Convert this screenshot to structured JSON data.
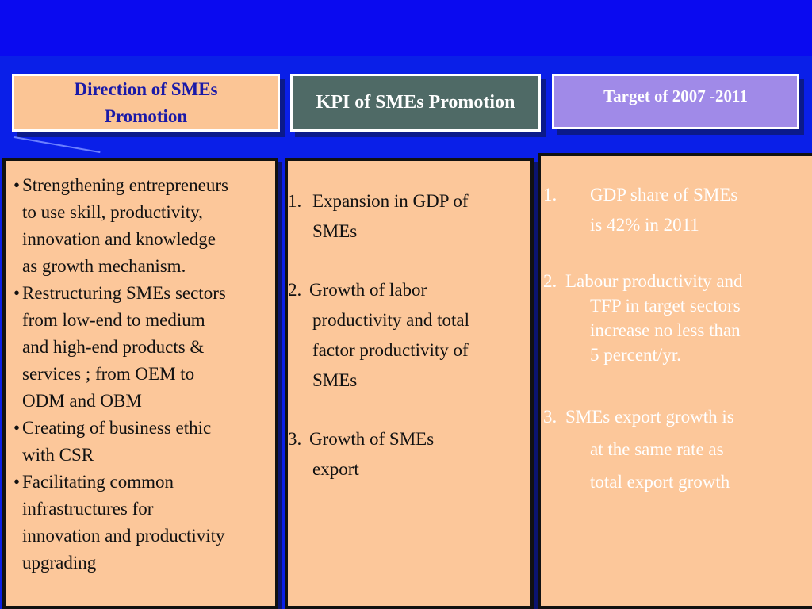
{
  "headers": {
    "direction_line1": "Direction of SMEs",
    "direction_line2": "Promotion",
    "kpi": "KPI of SMEs Promotion",
    "target": "Target  of  2007 -2011"
  },
  "direction_items": [
    {
      "bullet": "•",
      "lines": [
        "Strengthening entrepreneurs",
        "to use skill, productivity,",
        "innovation and knowledge",
        "as growth mechanism."
      ]
    },
    {
      "bullet": "•",
      "lines": [
        "Restructuring SMEs sectors",
        "from low-end to medium",
        "and high-end products &",
        "services ; from OEM to",
        "ODM and OBM"
      ]
    },
    {
      "bullet": "•",
      "lines": [
        "Creating of business ethic",
        "with CSR"
      ]
    },
    {
      "bullet": "•",
      "lines": [
        "Facilitating common",
        "infrastructures for",
        "innovation and productivity",
        "upgrading"
      ]
    }
  ],
  "kpi_items": [
    {
      "num": "1.",
      "lines": [
        "Expansion in GDP of",
        "SMEs"
      ]
    },
    {
      "num": "2.",
      "lines": [
        "Growth of labor",
        "productivity and total",
        "factor productivity of",
        "SMEs"
      ]
    },
    {
      "num": "3.",
      "lines": [
        "Growth of SMEs",
        "export"
      ]
    }
  ],
  "target_items": [
    {
      "num": "1.",
      "lines": [
        "GDP share of  SMEs",
        "is 42% in 2011"
      ]
    },
    {
      "num": "2.",
      "lines": [
        "Labour productivity and",
        "TFP in target sectors",
        "increase no less than",
        "5 percent/yr."
      ]
    },
    {
      "num": "3.",
      "lines": [
        "SMEs export growth is",
        "at the same rate as",
        "total export growth"
      ]
    }
  ]
}
